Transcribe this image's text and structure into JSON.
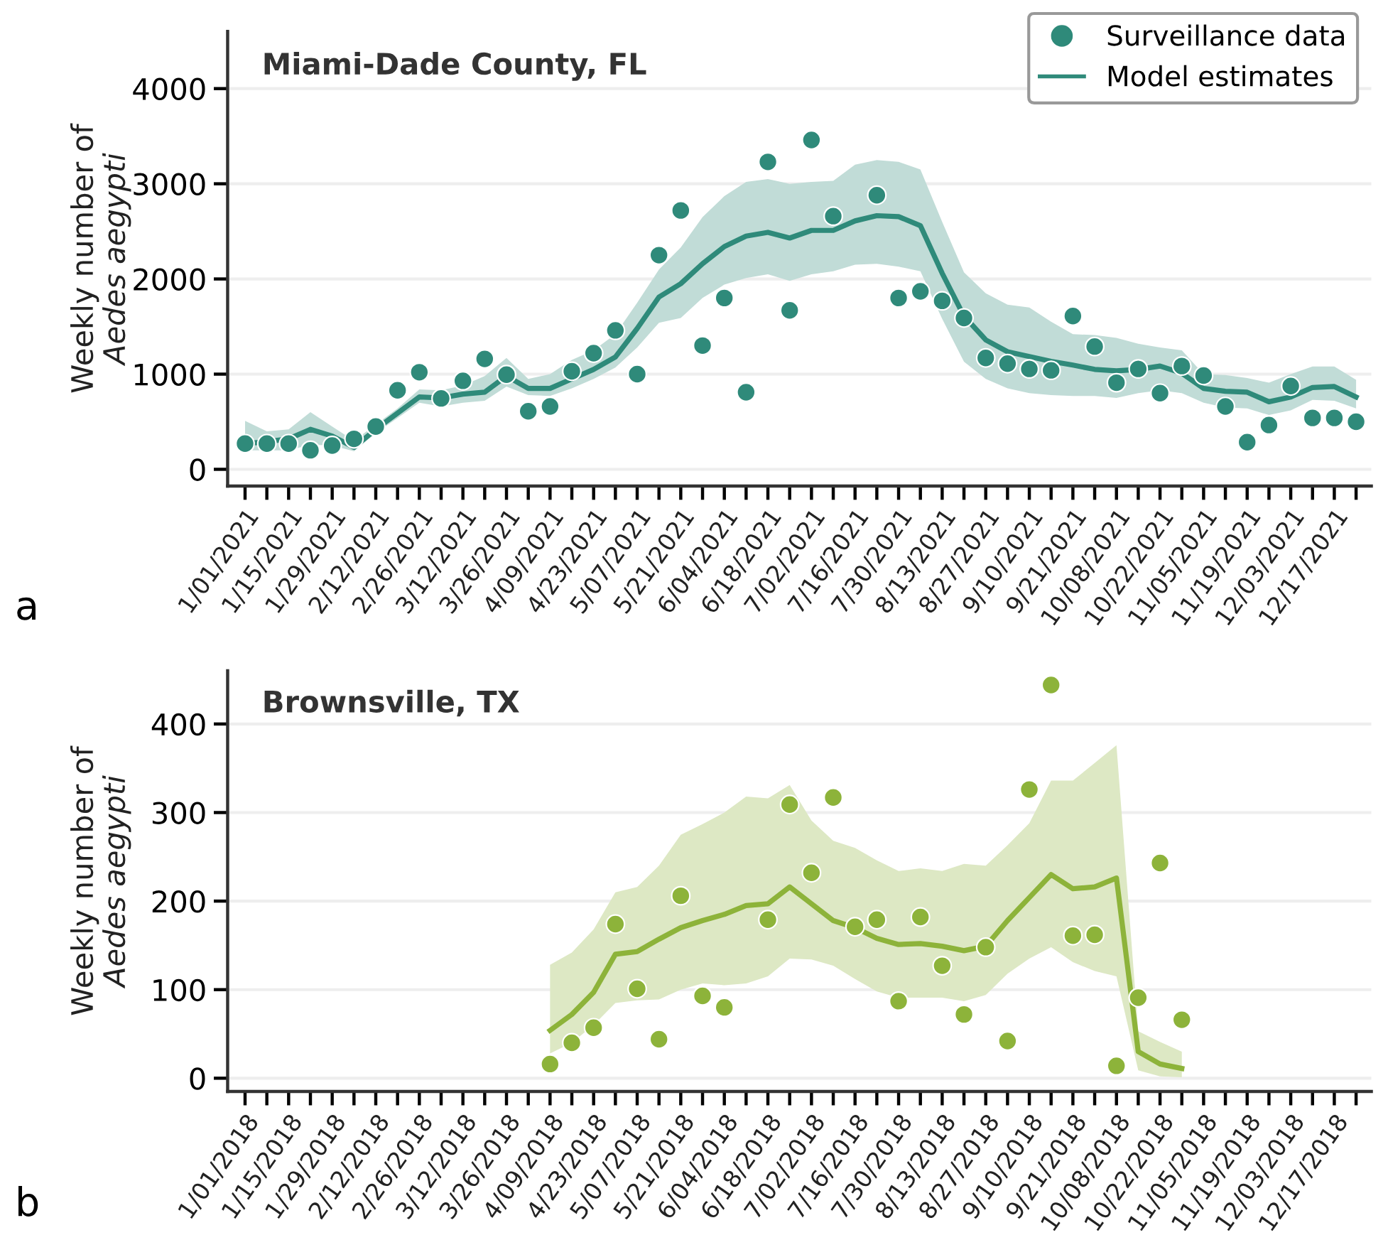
{
  "chart_data": [
    {
      "type": "line",
      "title": "Miami-Dade County, FL",
      "ylabel": "Weekly number of\nAedes aegypti",
      "categories": [
        "1/01/2021",
        null,
        "1/15/2021",
        null,
        "1/29/2021",
        null,
        "2/12/2021",
        null,
        "2/26/2021",
        null,
        "3/12/2021",
        null,
        "3/26/2021",
        null,
        "4/09/2021",
        null,
        "4/23/2021",
        null,
        "5/07/2021",
        null,
        "5/21/2021",
        null,
        "6/04/2021",
        null,
        "6/18/2021",
        null,
        "7/02/2021",
        null,
        "7/16/2021",
        null,
        "7/30/2021",
        null,
        "8/13/2021",
        null,
        "8/27/2021",
        null,
        "9/10/2021",
        null,
        "9/21/2021",
        null,
        "10/08/2021",
        null,
        "10/22/2021",
        null,
        "11/05/2021",
        null,
        "11/19/2021",
        null,
        "12/03/2021",
        null,
        "12/17/2021",
        null
      ],
      "series": [
        {
          "name": "Surveillance data",
          "type": "scatter",
          "marker": "circle",
          "color": "#2f8a7a",
          "values": [
            270,
            270,
            270,
            200,
            250,
            320,
            450,
            830,
            1020,
            745,
            930,
            1160,
            995,
            610,
            660,
            1030,
            1220,
            1460,
            1000,
            2250,
            2720,
            1300,
            1800,
            810,
            3230,
            1670,
            3460,
            2660,
            null,
            2880,
            1800,
            1870,
            1770,
            1590,
            1170,
            1110,
            1055,
            1040,
            1610,
            1290,
            910,
            1055,
            800,
            1085,
            985,
            660,
            285,
            465,
            875,
            540,
            540,
            500
          ]
        },
        {
          "name": "Model estimates",
          "color": "#2f8a7a",
          "values": [
            270,
            290,
            320,
            420,
            350,
            230,
            420,
            590,
            760,
            750,
            790,
            810,
            980,
            850,
            850,
            950,
            1050,
            1180,
            1480,
            1810,
            1950,
            2160,
            2340,
            2450,
            2490,
            2430,
            2510,
            2510,
            2610,
            2665,
            2655,
            2560,
            2060,
            1610,
            1360,
            1235,
            1185,
            1135,
            1095,
            1050,
            1035,
            1050,
            1085,
            1010,
            850,
            820,
            810,
            710,
            760,
            860,
            870,
            760
          ],
          "lower": [
            200,
            200,
            200,
            260,
            250,
            190,
            380,
            540,
            700,
            660,
            700,
            720,
            870,
            780,
            770,
            850,
            950,
            1070,
            1280,
            1540,
            1590,
            1800,
            1940,
            2010,
            2050,
            1980,
            2050,
            2080,
            2150,
            2160,
            2130,
            2080,
            1580,
            1130,
            950,
            850,
            800,
            780,
            770,
            770,
            750,
            800,
            830,
            800,
            700,
            650,
            640,
            570,
            620,
            730,
            720,
            640
          ],
          "upper": [
            510,
            400,
            420,
            600,
            450,
            300,
            470,
            640,
            840,
            830,
            880,
            980,
            1170,
            950,
            1000,
            1150,
            1250,
            1420,
            1750,
            2100,
            2330,
            2650,
            2870,
            3020,
            3050,
            3000,
            3020,
            3030,
            3200,
            3250,
            3230,
            3150,
            2600,
            2070,
            1850,
            1730,
            1700,
            1550,
            1420,
            1410,
            1380,
            1320,
            1280,
            1250,
            1000,
            990,
            960,
            910,
            1000,
            1080,
            1080,
            940
          ]
        }
      ],
      "ylim": [
        -175,
        4600
      ],
      "yticks": [
        0,
        1000,
        2000,
        3000,
        4000
      ],
      "grid": "y",
      "legend": "top right",
      "line_style": "solid",
      "annotations": [
        "a"
      ]
    },
    {
      "type": "line",
      "title": "Brownsville, TX",
      "ylabel": "Weekly number of\nAedes aegypti",
      "categories": [
        "1/01/2018",
        null,
        "1/15/2018",
        null,
        "1/29/2018",
        null,
        "2/12/2018",
        null,
        "2/26/2018",
        null,
        "3/12/2018",
        null,
        "3/26/2018",
        null,
        "4/09/2018",
        null,
        "4/23/2018",
        null,
        "5/07/2018",
        null,
        "5/21/2018",
        null,
        "6/04/2018",
        null,
        "6/18/2018",
        null,
        "7/02/2018",
        null,
        "7/16/2018",
        null,
        "7/30/2018",
        null,
        "8/13/2018",
        null,
        "8/27/2018",
        null,
        "9/10/2018",
        null,
        "9/21/2018",
        null,
        "10/08/2018",
        null,
        "10/22/2018",
        null,
        "11/05/2018",
        null,
        "11/19/2018",
        null,
        "12/03/2018",
        null,
        "12/17/2018",
        null
      ],
      "series": [
        {
          "type": "scatter",
          "marker": "circle",
          "color": "#8db33a",
          "values": [
            null,
            null,
            null,
            null,
            null,
            null,
            null,
            null,
            null,
            null,
            null,
            null,
            null,
            null,
            16,
            40,
            57,
            174,
            101,
            44,
            206,
            93,
            80,
            null,
            179,
            309,
            232,
            317,
            171,
            179,
            87,
            182,
            127,
            72,
            148,
            42,
            326,
            444,
            161,
            162,
            14,
            91,
            243,
            66,
            null,
            null,
            null,
            null,
            null,
            null,
            null,
            null
          ]
        },
        {
          "color": "#8db33a",
          "values": [
            null,
            null,
            null,
            null,
            null,
            null,
            null,
            null,
            null,
            null,
            null,
            null,
            null,
            null,
            54,
            72,
            97,
            140,
            143,
            157,
            170,
            178,
            185,
            195,
            197,
            216,
            197,
            178,
            170,
            158,
            151,
            152,
            149,
            144,
            149,
            178,
            204,
            230,
            214,
            216,
            226,
            30,
            16,
            11,
            null,
            null,
            null,
            null,
            null,
            null,
            null,
            null
          ],
          "lower": [
            null,
            null,
            null,
            null,
            null,
            null,
            null,
            null,
            null,
            null,
            null,
            null,
            null,
            null,
            28,
            40,
            60,
            85,
            88,
            89,
            100,
            107,
            105,
            107,
            115,
            135,
            134,
            127,
            112,
            98,
            91,
            91,
            91,
            87,
            94,
            118,
            135,
            148,
            131,
            121,
            115,
            9,
            2,
            1,
            null,
            null,
            null,
            null,
            null,
            null,
            null,
            null
          ],
          "upper": [
            null,
            null,
            null,
            null,
            null,
            null,
            null,
            null,
            null,
            null,
            null,
            null,
            null,
            null,
            128,
            142,
            168,
            210,
            216,
            240,
            275,
            287,
            300,
            318,
            316,
            331,
            291,
            268,
            260,
            246,
            234,
            237,
            234,
            242,
            240,
            263,
            288,
            336,
            336,
            356,
            376,
            53,
            41,
            30,
            null,
            null,
            null,
            null,
            null,
            null,
            null,
            null
          ]
        }
      ],
      "ylim": [
        -15,
        460
      ],
      "yticks": [
        0,
        100,
        200,
        300,
        400
      ],
      "grid": "y",
      "line_style": "solid",
      "annotations": [
        "b"
      ]
    }
  ]
}
